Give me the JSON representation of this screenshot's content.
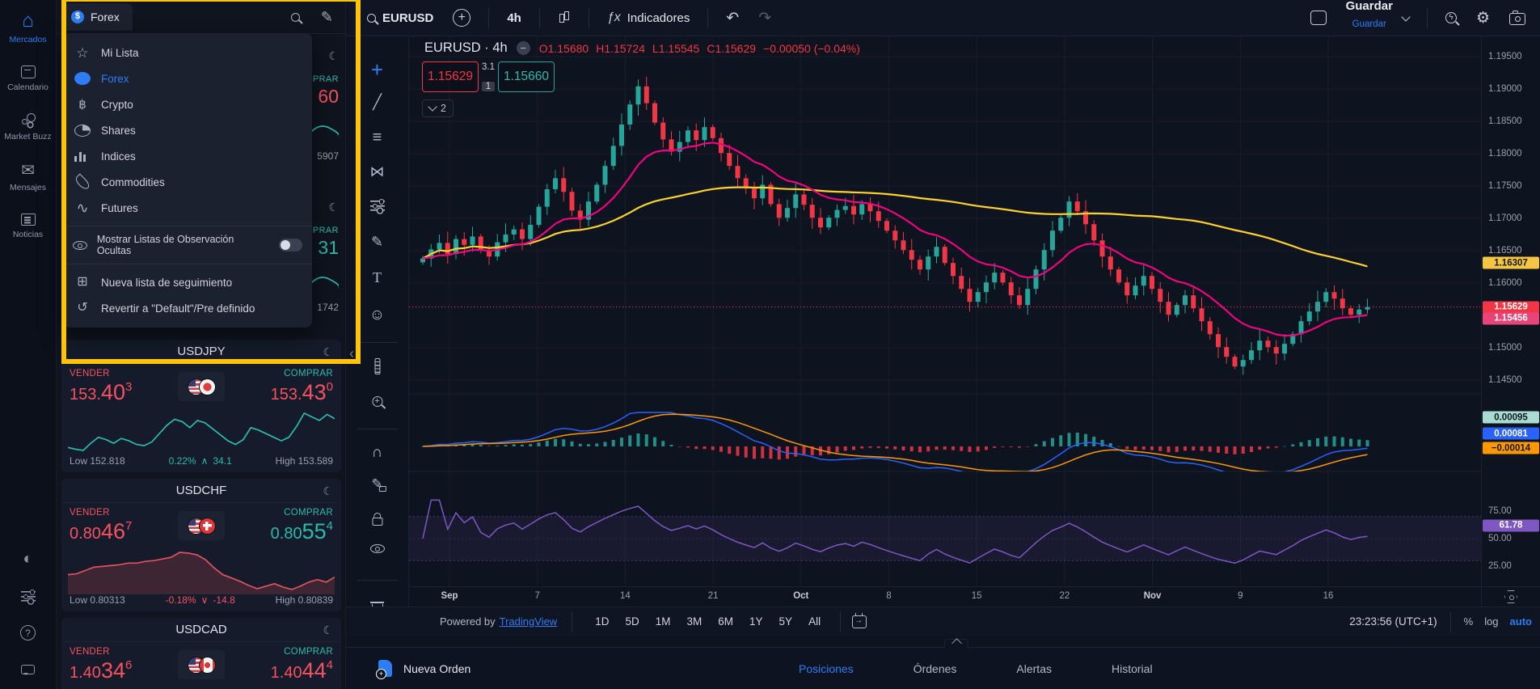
{
  "labels": {
    "sell": "VENDER",
    "buy": "COMPRAR",
    "low_prefix": "Low",
    "high_prefix": "High"
  },
  "left_nav": {
    "items": [
      {
        "label": "Mercados",
        "icon": "home-icon",
        "cls": "i-home",
        "active": true
      },
      {
        "label": "Calendario",
        "icon": "calendar-icon",
        "cls": "i-calendar",
        "active": false
      },
      {
        "label": "Market Buzz",
        "icon": "bubbles-icon",
        "cls": "i-bubbles",
        "active": false
      },
      {
        "label": "Mensajes",
        "icon": "envelope-icon",
        "cls": "i-envelope",
        "active": false
      },
      {
        "label": "Noticias",
        "icon": "news-icon",
        "cls": "i-news",
        "active": false
      }
    ],
    "footer": [
      {
        "name": "theme-contrast-icon",
        "cls": "i-theme"
      },
      {
        "name": "preferences-sliders-icon",
        "cls": "i-sliders"
      },
      {
        "name": "help-icon",
        "cls": "i-help"
      },
      {
        "name": "chat-icon",
        "cls": "i-chat"
      }
    ]
  },
  "watchlist": {
    "selected_list": "Forex",
    "dropdown": {
      "items": [
        {
          "label": "Mi Lista",
          "cls": "i-star",
          "icon": "star-icon",
          "selected": false
        },
        {
          "label": "Forex",
          "cls": "i-dollar sm",
          "icon": "dollar-circle-icon",
          "selected": true
        },
        {
          "label": "Crypto",
          "cls": "i-btc",
          "icon": "bitcoin-icon",
          "selected": false
        },
        {
          "label": "Shares",
          "cls": "i-pie",
          "icon": "pie-chart-icon",
          "selected": false
        },
        {
          "label": "Indices",
          "cls": "i-bars",
          "icon": "bar-chart-icon",
          "selected": false
        },
        {
          "label": "Commodities",
          "cls": "i-drop",
          "icon": "droplet-icon",
          "selected": false
        },
        {
          "label": "Futures",
          "cls": "i-wave",
          "icon": "line-chart-icon",
          "selected": false
        }
      ],
      "toggle_label": "Mostrar Listas de Observación Ocultas",
      "toggle_state": "off",
      "actions": [
        {
          "label": "Nueva lista de seguimiento",
          "cls": "i-plus-square",
          "icon": "new-watchlist-icon"
        },
        {
          "label": "Revertir a \"Default\"/Pre definido",
          "cls": "i-revert",
          "icon": "revert-icon"
        }
      ]
    },
    "obscured_items": [
      {
        "label_fragment": "PRAR",
        "price_fragment": "60",
        "price_color": "#f7525f",
        "stat_fragment": "5907"
      },
      {
        "label_fragment": "PRAR",
        "price_fragment": "31",
        "price_color": "#2bbbad",
        "stat_fragment": "1742"
      }
    ],
    "symbols": [
      {
        "name": "USDJPY",
        "sell_parts": [
          "153.",
          "40",
          "3"
        ],
        "sell_color": "#f7525f",
        "buy_parts": [
          "153.",
          "43",
          "0"
        ],
        "buy_color": "#f7525f",
        "flags": [
          "us",
          "jp"
        ],
        "low": "152.818",
        "high": "153.589",
        "change_pct": "0.22%",
        "change_val": "34.1",
        "change_dir": "up",
        "change_color": "#2bbbad",
        "spark_color": "#2bbbad",
        "spark_fill": false,
        "spark": [
          152.95,
          152.92,
          152.9,
          153.02,
          153.12,
          153.08,
          153.02,
          153.1,
          153.06,
          153.0,
          152.98,
          153.04,
          153.18,
          153.32,
          153.42,
          153.38,
          153.28,
          153.4,
          153.36,
          153.26,
          153.16,
          153.06,
          153.0,
          153.08,
          153.28,
          153.24,
          153.18,
          153.12,
          153.06,
          153.12,
          153.3,
          153.52,
          153.46,
          153.4,
          153.5,
          153.43
        ]
      },
      {
        "name": "USDCHF",
        "sell_parts": [
          "0.80",
          "46",
          "7"
        ],
        "sell_color": "#f7525f",
        "buy_parts": [
          "0.80",
          "55",
          "4"
        ],
        "buy_color": "#2bbbad",
        "flags": [
          "us",
          "ch"
        ],
        "low": "0.80313",
        "high": "0.80839",
        "change_pct": "-0.18%",
        "change_val": "-14.8",
        "change_dir": "down",
        "change_color": "#f7525f",
        "spark_color": "#e05260",
        "spark_fill": true,
        "spark": [
          0.805,
          0.8051,
          0.8055,
          0.8059,
          0.806,
          0.8061,
          0.8062,
          0.8064,
          0.8064,
          0.8066,
          0.8067,
          0.8069,
          0.8071,
          0.8077,
          0.8076,
          0.8074,
          0.8068,
          0.8058,
          0.805,
          0.8046,
          0.8042,
          0.8037,
          0.8033,
          0.8036,
          0.8039,
          0.8035,
          0.8032,
          0.8036,
          0.8041,
          0.8044,
          0.8041,
          0.8047
        ]
      },
      {
        "name": "USDCAD",
        "sell_parts": [
          "1.40",
          "34",
          "6"
        ],
        "sell_color": "#f7525f",
        "buy_parts": [
          "1.40",
          "44",
          "4"
        ],
        "buy_color": "#f7525f",
        "flags": [
          "us",
          "ca"
        ],
        "low": "",
        "high": "",
        "change_pct": "",
        "change_val": "",
        "change_dir": "up",
        "change_color": "#2bbbad",
        "spark_color": "#2bbbad",
        "spark_fill": false,
        "spark": []
      }
    ]
  },
  "top_toolbar": {
    "symbol_search": "EURUSD",
    "interval": "4h",
    "indicators_label": "Indicadores",
    "save_label": "Guardar",
    "save_sublabel": "Guardar"
  },
  "chart": {
    "legend": {
      "title": "EURUSD · 4h",
      "o": "O1.15680",
      "h": "H1.15724",
      "l": "L1.15545",
      "c": "C1.15629",
      "change": "−0.00050 (−0.04%)"
    },
    "trade": {
      "sell": "1.15629",
      "spread_top": "3.1",
      "spread_bottom": "1",
      "buy": "1.15660"
    },
    "collapse_count": "2",
    "price_scale": {
      "labels": [
        {
          "text": "1.19500",
          "price": 1.195
        },
        {
          "text": "1.19000",
          "price": 1.19
        },
        {
          "text": "1.18500",
          "price": 1.185
        },
        {
          "text": "1.18000",
          "price": 1.18
        },
        {
          "text": "1.17500",
          "price": 1.175
        },
        {
          "text": "1.17000",
          "price": 1.17
        },
        {
          "text": "1.16500",
          "price": 1.165
        },
        {
          "text": "1.16000",
          "price": 1.16
        },
        {
          "text": "1.15000",
          "price": 1.15
        },
        {
          "text": "1.14500",
          "price": 1.145
        }
      ],
      "badges": [
        {
          "text": "1.16307",
          "price": 1.16307,
          "bg": "#f5c644",
          "fg": "#14181f"
        },
        {
          "text": "1.15629",
          "price": 1.15629,
          "bg": "#f23645",
          "fg": "#ffffff"
        },
        {
          "text": "1.15456",
          "price": 1.15456,
          "bg": "#e8447a",
          "fg": "#ffffff"
        }
      ]
    },
    "macd_badges": [
      {
        "text": "0.00095",
        "bg": "#a8dcd2",
        "fg": "#14181f",
        "y": 516
      },
      {
        "text": "0.00081",
        "bg": "#2962ff",
        "fg": "#ffffff",
        "y": 536
      },
      {
        "text": "−0.00014",
        "bg": "#ff9800",
        "fg": "#14181f",
        "y": 554
      }
    ],
    "rsi": {
      "labels": [
        {
          "text": "75.00",
          "v": 75
        },
        {
          "text": "50.00",
          "v": 50
        },
        {
          "text": "25.00",
          "v": 25
        }
      ],
      "badge": {
        "text": "61.78",
        "v": 61.78,
        "bg": "#7e57c2",
        "fg": "#ffffff"
      }
    },
    "time_axis": [
      "Sep",
      "7",
      "14",
      "21",
      "Oct",
      "8",
      "15",
      "22",
      "Nov",
      "9",
      "16"
    ],
    "chart_data": {
      "type": "candlestick",
      "symbol": "EURUSD",
      "interval": "4h",
      "ylim": [
        1.1425,
        1.1975
      ],
      "up_color": "#26a69a",
      "down_color": "#f23645",
      "ma_slow_color": "#ffd12b",
      "ma_fast_color": "#f0047f",
      "last_price": 1.15629,
      "closes": [
        1.1638,
        1.1652,
        1.1662,
        1.1645,
        1.1668,
        1.1659,
        1.1672,
        1.165,
        1.1641,
        1.1663,
        1.1675,
        1.1683,
        1.1668,
        1.169,
        1.1718,
        1.1745,
        1.1762,
        1.1741,
        1.1712,
        1.1698,
        1.1726,
        1.1752,
        1.1781,
        1.1812,
        1.1845,
        1.1876,
        1.1904,
        1.1878,
        1.1848,
        1.1822,
        1.1803,
        1.1818,
        1.1836,
        1.1821,
        1.1841,
        1.1824,
        1.1801,
        1.1781,
        1.1762,
        1.1746,
        1.1731,
        1.1752,
        1.1722,
        1.1701,
        1.1716,
        1.1737,
        1.1721,
        1.1701,
        1.1686,
        1.1701,
        1.1713,
        1.1719,
        1.1706,
        1.1722,
        1.1711,
        1.1696,
        1.1681,
        1.1666,
        1.1651,
        1.1636,
        1.1621,
        1.1641,
        1.1656,
        1.1631,
        1.1611,
        1.1591,
        1.1571,
        1.1586,
        1.1601,
        1.1616,
        1.1601,
        1.1581,
        1.1566,
        1.1591,
        1.1621,
        1.1651,
        1.1681,
        1.1701,
        1.1726,
        1.1711,
        1.1691,
        1.1666,
        1.1641,
        1.1621,
        1.1601,
        1.1581,
        1.1596,
        1.1611,
        1.1591,
        1.1571,
        1.1551,
        1.1566,
        1.1581,
        1.1561,
        1.1541,
        1.1521,
        1.1501,
        1.1486,
        1.1471,
        1.1481,
        1.1496,
        1.1511,
        1.1501,
        1.1491,
        1.1506,
        1.1521,
        1.1541,
        1.1556,
        1.1571,
        1.1586,
        1.1576,
        1.1561,
        1.1551,
        1.1559,
        1.15629
      ]
    }
  },
  "bottom_toolbar": {
    "powered_by": "Powered by",
    "tradingview": "TradingView",
    "ranges": [
      "1D",
      "5D",
      "1M",
      "3M",
      "6M",
      "1Y",
      "5Y",
      "All"
    ],
    "clock": "23:23:56 (UTC+1)",
    "percent": "%",
    "log": "log",
    "auto": "auto"
  },
  "order_panel": {
    "new_order": "Nueva Orden",
    "tabs": [
      {
        "label": "Posiciones",
        "active": true
      },
      {
        "label": "Órdenes",
        "active": false
      },
      {
        "label": "Alertas",
        "active": false
      },
      {
        "label": "Historial",
        "active": false
      }
    ]
  }
}
